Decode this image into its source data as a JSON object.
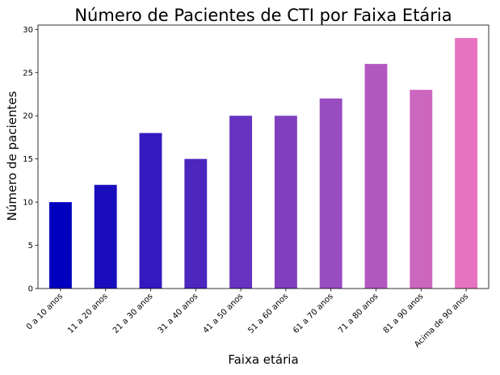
{
  "chart_data": {
    "type": "bar",
    "title": "Número de Pacientes de CTI por Faixa Etária",
    "xlabel": "Faixa etária",
    "ylabel": "Número de pacientes",
    "categories": [
      "0 a 10 anos",
      "11 a 20 anos",
      "21 a 30 anos",
      "31 a 40 anos",
      "41 a 50 anos",
      "51 a 60 anos",
      "61 a 70 anos",
      "71 a 80 anos",
      "81 a 90 anos",
      "Acima de 90 anos"
    ],
    "values": [
      10,
      12,
      18,
      15,
      20,
      20,
      22,
      26,
      23,
      29
    ],
    "ylim": [
      0,
      30.5
    ],
    "yticks": [
      0,
      5,
      10,
      15,
      20,
      25,
      30
    ],
    "grid": false,
    "legend": "none",
    "bar_colors": [
      "#0000bf",
      "#1a0dbf",
      "#3319bf",
      "#4c26bf",
      "#6632bf",
      "#7f3fbf",
      "#994cbf",
      "#b259bf",
      "#cc66bf",
      "#e673c0"
    ]
  }
}
